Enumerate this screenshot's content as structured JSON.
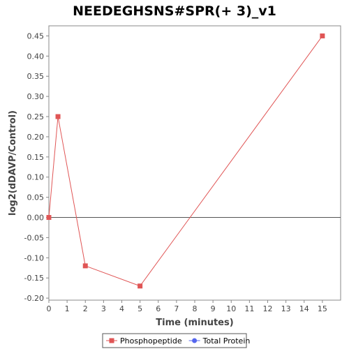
{
  "chart_data": {
    "type": "line",
    "title": "NEEDEGHSNS#SPR(+ 3)_v1",
    "xlabel": "Time (minutes)",
    "ylabel": "log2(dDAVP/Control)",
    "xlim": [
      0,
      16
    ],
    "ylim": [
      -0.205,
      0.475
    ],
    "x_ticks": [
      0,
      1,
      2,
      3,
      4,
      5,
      6,
      7,
      8,
      9,
      10,
      11,
      12,
      13,
      14,
      15
    ],
    "y_ticks": [
      -0.2,
      -0.15,
      -0.1,
      -0.05,
      0.0,
      0.05,
      0.1,
      0.15,
      0.2,
      0.25,
      0.3,
      0.35,
      0.4,
      0.45
    ],
    "y_tick_labels": [
      "-0.20",
      "-0.15",
      "-0.10",
      "-0.05",
      "0.00",
      "0.05",
      "0.10",
      "0.15",
      "0.20",
      "0.25",
      "0.30",
      "0.35",
      "0.40",
      "0.45"
    ],
    "zero_line": true,
    "grid": false,
    "legend_position": "bottom-center",
    "series": [
      {
        "name": "Phosphopeptide",
        "color": "#e05555",
        "marker": "square",
        "points": [
          {
            "x": 0,
            "y": 0.0
          },
          {
            "x": 0.5,
            "y": 0.25
          },
          {
            "x": 2,
            "y": -0.12
          },
          {
            "x": 5,
            "y": -0.17
          },
          {
            "x": 15,
            "y": 0.45
          }
        ]
      },
      {
        "name": "Total Protein",
        "color": "#5566ee",
        "marker": "circle",
        "points": []
      }
    ]
  }
}
